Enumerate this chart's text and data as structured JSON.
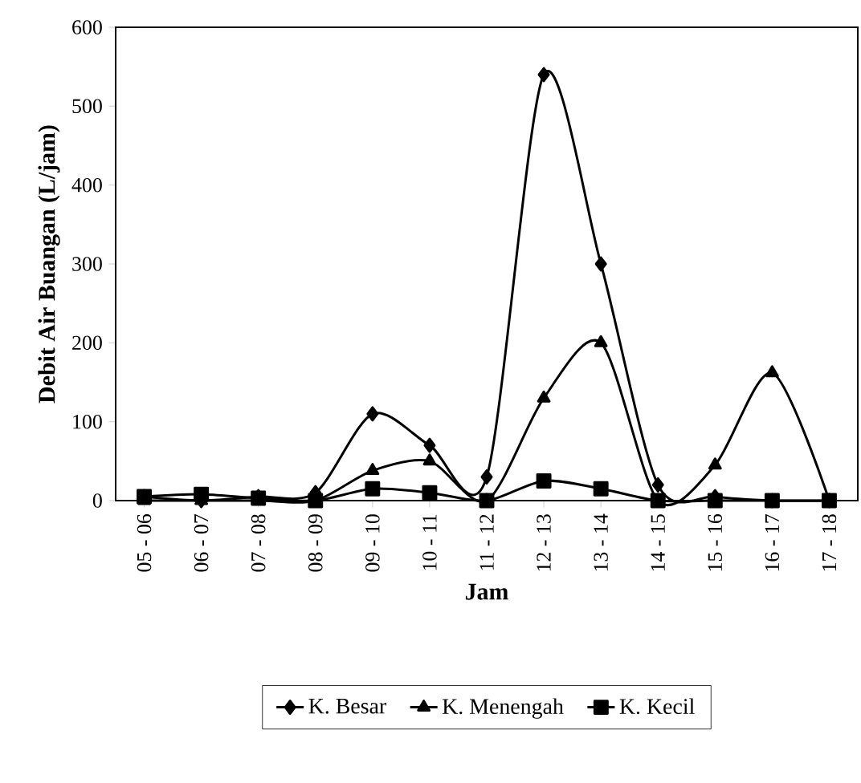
{
  "chart_data": {
    "type": "line",
    "xlabel": "Jam",
    "ylabel": "Debit Air Buangan (L/jam)",
    "categories": [
      "05 - 06",
      "06 - 07",
      "07 - 08",
      "08 - 09",
      "09 - 10",
      "10 - 11",
      "11 - 12",
      "12 - 13",
      "13 - 14",
      "14 - 15",
      "15 - 16",
      "16 - 17",
      "17 - 18"
    ],
    "series": [
      {
        "name": "K. Besar",
        "color": "#000000",
        "marker": "diamond",
        "values": [
          5,
          0,
          5,
          10,
          110,
          70,
          30,
          540,
          300,
          20,
          5,
          0,
          0
        ]
      },
      {
        "name": "K. Menengah",
        "color": "#000000",
        "marker": "triangle",
        "values": [
          0,
          0,
          0,
          0,
          38,
          50,
          0,
          130,
          200,
          0,
          45,
          162,
          0
        ]
      },
      {
        "name": "K. Kecil",
        "color": "#000000",
        "marker": "square",
        "values": [
          5,
          8,
          3,
          0,
          15,
          10,
          0,
          25,
          15,
          0,
          0,
          0,
          0
        ]
      }
    ],
    "ylim": [
      0,
      600
    ],
    "yticks": [
      0,
      100,
      200,
      300,
      400,
      500,
      600
    ],
    "grid": false,
    "legend": "bottom",
    "line_style": "solid"
  }
}
